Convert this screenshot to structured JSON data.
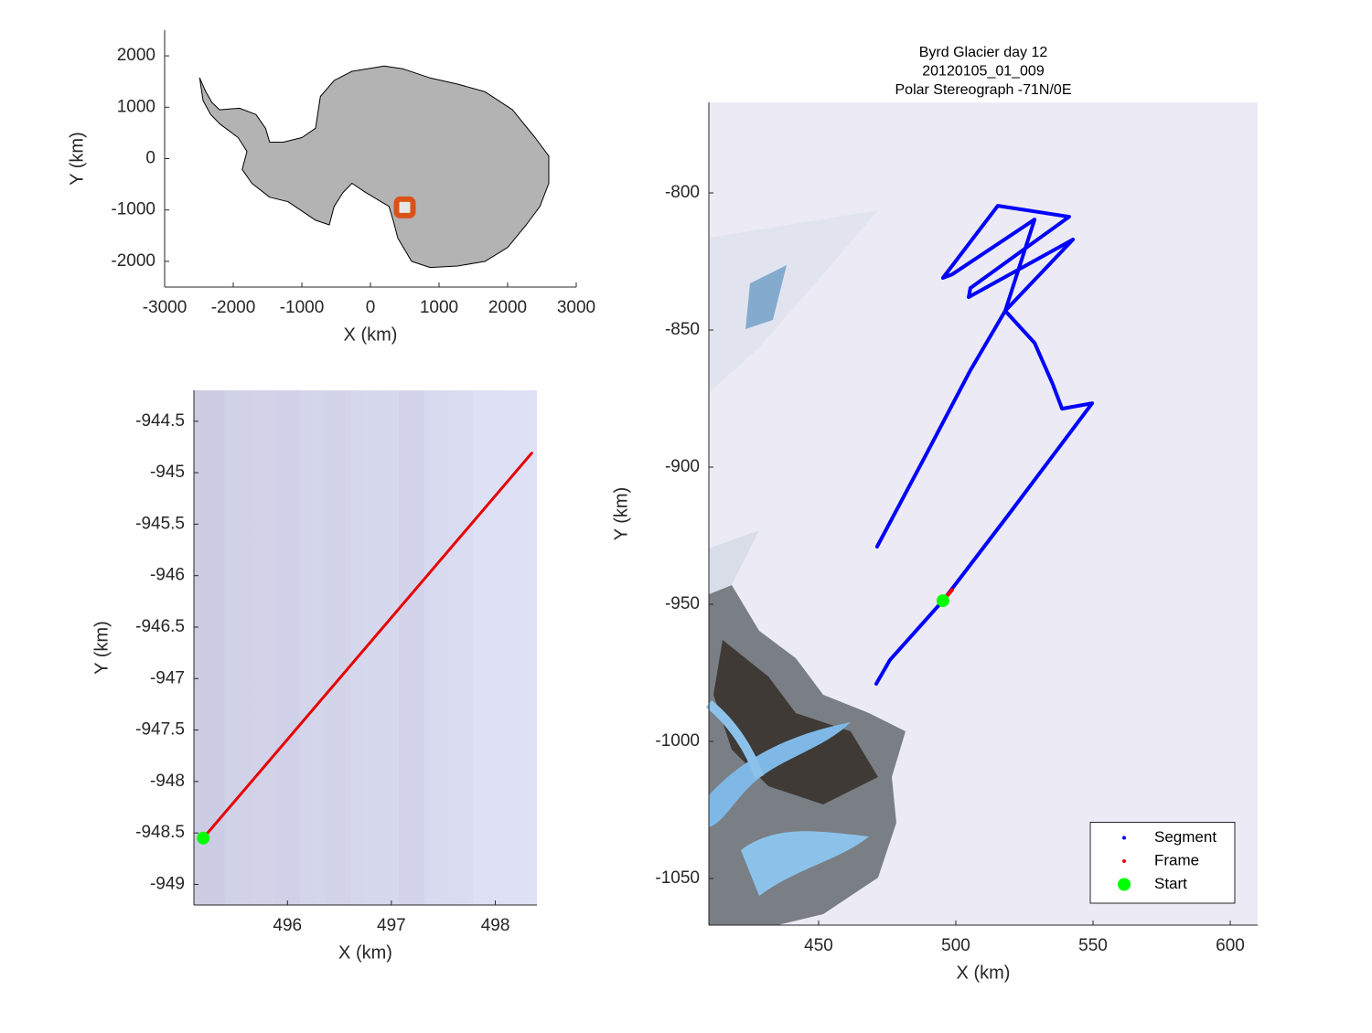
{
  "chart_data": [
    {
      "type": "map",
      "xlabel": "X (km)",
      "ylabel": "Y (km)",
      "xlim": [
        -3000,
        3000
      ],
      "xticks": [
        -3000,
        -2000,
        -1000,
        0,
        1000,
        2000,
        3000
      ],
      "ylim": [
        -2500,
        2500
      ],
      "yticks": [
        -2000,
        -1000,
        0,
        1000,
        2000
      ],
      "grid": false,
      "series": [
        {
          "color": "#b3b3b3",
          "fill": true,
          "x": [
            -2490,
            -2400,
            -2310,
            -2200,
            -1910,
            -1670,
            -1530,
            -1470,
            -1270,
            -1000,
            -800,
            -730,
            -530,
            -270,
            200,
            470,
            870,
            1270,
            1670,
            2070,
            2400,
            2600,
            2600,
            2470,
            2270,
            2000,
            1670,
            1270,
            870,
            600,
            400,
            330,
            270,
            -70,
            -270,
            -400,
            -530,
            -600,
            -800,
            -1000,
            -1200,
            -1470,
            -1730,
            -1870,
            -1800,
            -1930,
            -2200,
            -2330,
            -2440
          ],
          "values": [
            1570,
            1300,
            1090,
            950,
            980,
            860,
            590,
            320,
            320,
            410,
            590,
            1210,
            1520,
            1700,
            1800,
            1750,
            1570,
            1450,
            1300,
            950,
            410,
            50,
            -480,
            -930,
            -1290,
            -1730,
            -2000,
            -2090,
            -2120,
            -2000,
            -1550,
            -1200,
            -930,
            -660,
            -480,
            -660,
            -930,
            -1290,
            -1200,
            -1020,
            -840,
            -750,
            -480,
            -210,
            140,
            410,
            680,
            860,
            1130
          ]
        },
        {
          "type": "scatter",
          "marker": "square",
          "color": "#d95319",
          "x": [
            500
          ],
          "values": [
            -950
          ]
        }
      ]
    },
    {
      "type": "line",
      "xlabel": "X (km)",
      "ylabel": "Y (km)",
      "xlim": [
        495.1,
        498.4
      ],
      "xticks": [
        496,
        497,
        498
      ],
      "ylim": [
        -949.2,
        -944.2
      ],
      "yticks": [
        -944.5,
        -945,
        -945.5,
        -946,
        -946.5,
        -947,
        -947.5,
        -948,
        -948.5,
        -949
      ],
      "grid": false,
      "series": [
        {
          "color": "#e60000",
          "x": [
            495.19,
            498.35
          ],
          "values": [
            -948.55,
            -944.81
          ]
        },
        {
          "type": "scatter",
          "color": "#00ff00",
          "x": [
            495.19
          ],
          "values": [
            -948.55
          ]
        }
      ]
    },
    {
      "type": "line",
      "title": [
        "Byrd Glacier day 12",
        "20120105_01_009",
        "Polar Stereograph -71N/0E"
      ],
      "xlabel": "X (km)",
      "ylabel": "Y (km)",
      "xlim": [
        410,
        610
      ],
      "xticks": [
        450,
        500,
        550,
        600
      ],
      "ylim": [
        -1067,
        -767
      ],
      "yticks": [
        -800,
        -850,
        -900,
        -950,
        -1000,
        -1050
      ],
      "grid": false,
      "legend": "lower right",
      "series": [
        {
          "name": "Segment",
          "color": "#0000ff",
          "x": [
            471.3,
            488.7,
            505.3,
            518.0,
            528.7,
            498.7,
            495.3,
            515.3,
            541.3,
            505.3,
            504.7,
            542.7,
            518.0,
            528.7,
            535.3,
            538.7,
            549.7,
            518.7,
            495.3,
            476.0,
            471.0
          ],
          "values": [
            -929.0,
            -896.3,
            -864.7,
            -843.0,
            -809.7,
            -829.7,
            -831.0,
            -804.7,
            -808.7,
            -834.7,
            -838.0,
            -817.0,
            -843.0,
            -854.7,
            -869.7,
            -878.7,
            -876.7,
            -918.0,
            -948.7,
            -970.3,
            -979.0
          ]
        },
        {
          "name": "Frame",
          "color": "#ff0000",
          "x": [
            495.3,
            498.6
          ],
          "values": [
            -948.7,
            -944.8
          ]
        },
        {
          "name": "Start",
          "type": "scatter",
          "color": "#00ff00",
          "x": [
            495.3
          ],
          "values": [
            -948.7
          ]
        }
      ]
    }
  ]
}
